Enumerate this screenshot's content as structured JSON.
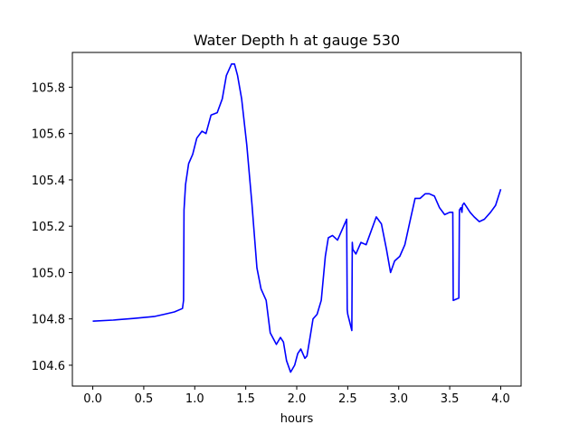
{
  "chart_data": {
    "type": "line",
    "title": "Water Depth h at gauge 530",
    "xlabel": "hours",
    "ylabel": "",
    "xlim": [
      -0.2,
      4.2
    ],
    "ylim": [
      104.51,
      105.95
    ],
    "xticks": [
      0.0,
      0.5,
      1.0,
      1.5,
      2.0,
      2.5,
      3.0,
      3.5,
      4.0
    ],
    "xtick_labels": [
      "0.0",
      "0.5",
      "1.0",
      "1.5",
      "2.0",
      "2.5",
      "3.0",
      "3.5",
      "4.0"
    ],
    "yticks": [
      104.6,
      104.8,
      105.0,
      105.2,
      105.4,
      105.6,
      105.8
    ],
    "ytick_labels": [
      "104.6",
      "104.8",
      "105.0",
      "105.2",
      "105.4",
      "105.6",
      "105.8"
    ],
    "grid": false,
    "series": [
      {
        "color": "#0000ff",
        "x": [
          0.0,
          0.2,
          0.4,
          0.6,
          0.7,
          0.8,
          0.88,
          0.89,
          0.895,
          0.91,
          0.94,
          0.98,
          1.02,
          1.07,
          1.11,
          1.16,
          1.22,
          1.27,
          1.31,
          1.36,
          1.39,
          1.42,
          1.46,
          1.51,
          1.56,
          1.61,
          1.65,
          1.7,
          1.74,
          1.8,
          1.84,
          1.87,
          1.9,
          1.94,
          1.98,
          2.01,
          2.04,
          2.08,
          2.1,
          2.13,
          2.16,
          2.2,
          2.24,
          2.28,
          2.31,
          2.35,
          2.4,
          2.44,
          2.48,
          2.49,
          2.495,
          2.5,
          2.54,
          2.545,
          2.55,
          2.58,
          2.63,
          2.68,
          2.73,
          2.78,
          2.83,
          2.88,
          2.92,
          2.96,
          3.01,
          3.06,
          3.11,
          3.16,
          3.21,
          3.26,
          3.3,
          3.35,
          3.4,
          3.45,
          3.5,
          3.53,
          3.535,
          3.59,
          3.595,
          3.61,
          3.62,
          3.625,
          3.64,
          3.67,
          3.7,
          3.74,
          3.79,
          3.84,
          3.9,
          3.95,
          4.0
        ],
        "y": [
          104.79,
          104.795,
          104.802,
          104.81,
          104.82,
          104.83,
          104.845,
          104.88,
          105.27,
          105.38,
          105.47,
          105.51,
          105.58,
          105.61,
          105.6,
          105.68,
          105.69,
          105.75,
          105.85,
          105.9,
          105.9,
          105.85,
          105.75,
          105.55,
          105.3,
          105.02,
          104.93,
          104.88,
          104.74,
          104.69,
          104.72,
          104.7,
          104.62,
          104.57,
          104.6,
          104.65,
          104.67,
          104.63,
          104.64,
          104.72,
          104.8,
          104.82,
          104.88,
          105.07,
          105.15,
          105.16,
          105.14,
          105.18,
          105.22,
          105.23,
          104.84,
          104.82,
          104.75,
          105.13,
          105.1,
          105.08,
          105.13,
          105.12,
          105.18,
          105.24,
          105.21,
          105.1,
          105.0,
          105.05,
          105.07,
          105.12,
          105.22,
          105.32,
          105.32,
          105.34,
          105.34,
          105.33,
          105.28,
          105.25,
          105.26,
          105.26,
          104.88,
          104.89,
          105.27,
          105.28,
          105.26,
          105.29,
          105.3,
          105.28,
          105.26,
          105.24,
          105.22,
          105.23,
          105.26,
          105.29,
          105.36
        ]
      }
    ]
  }
}
